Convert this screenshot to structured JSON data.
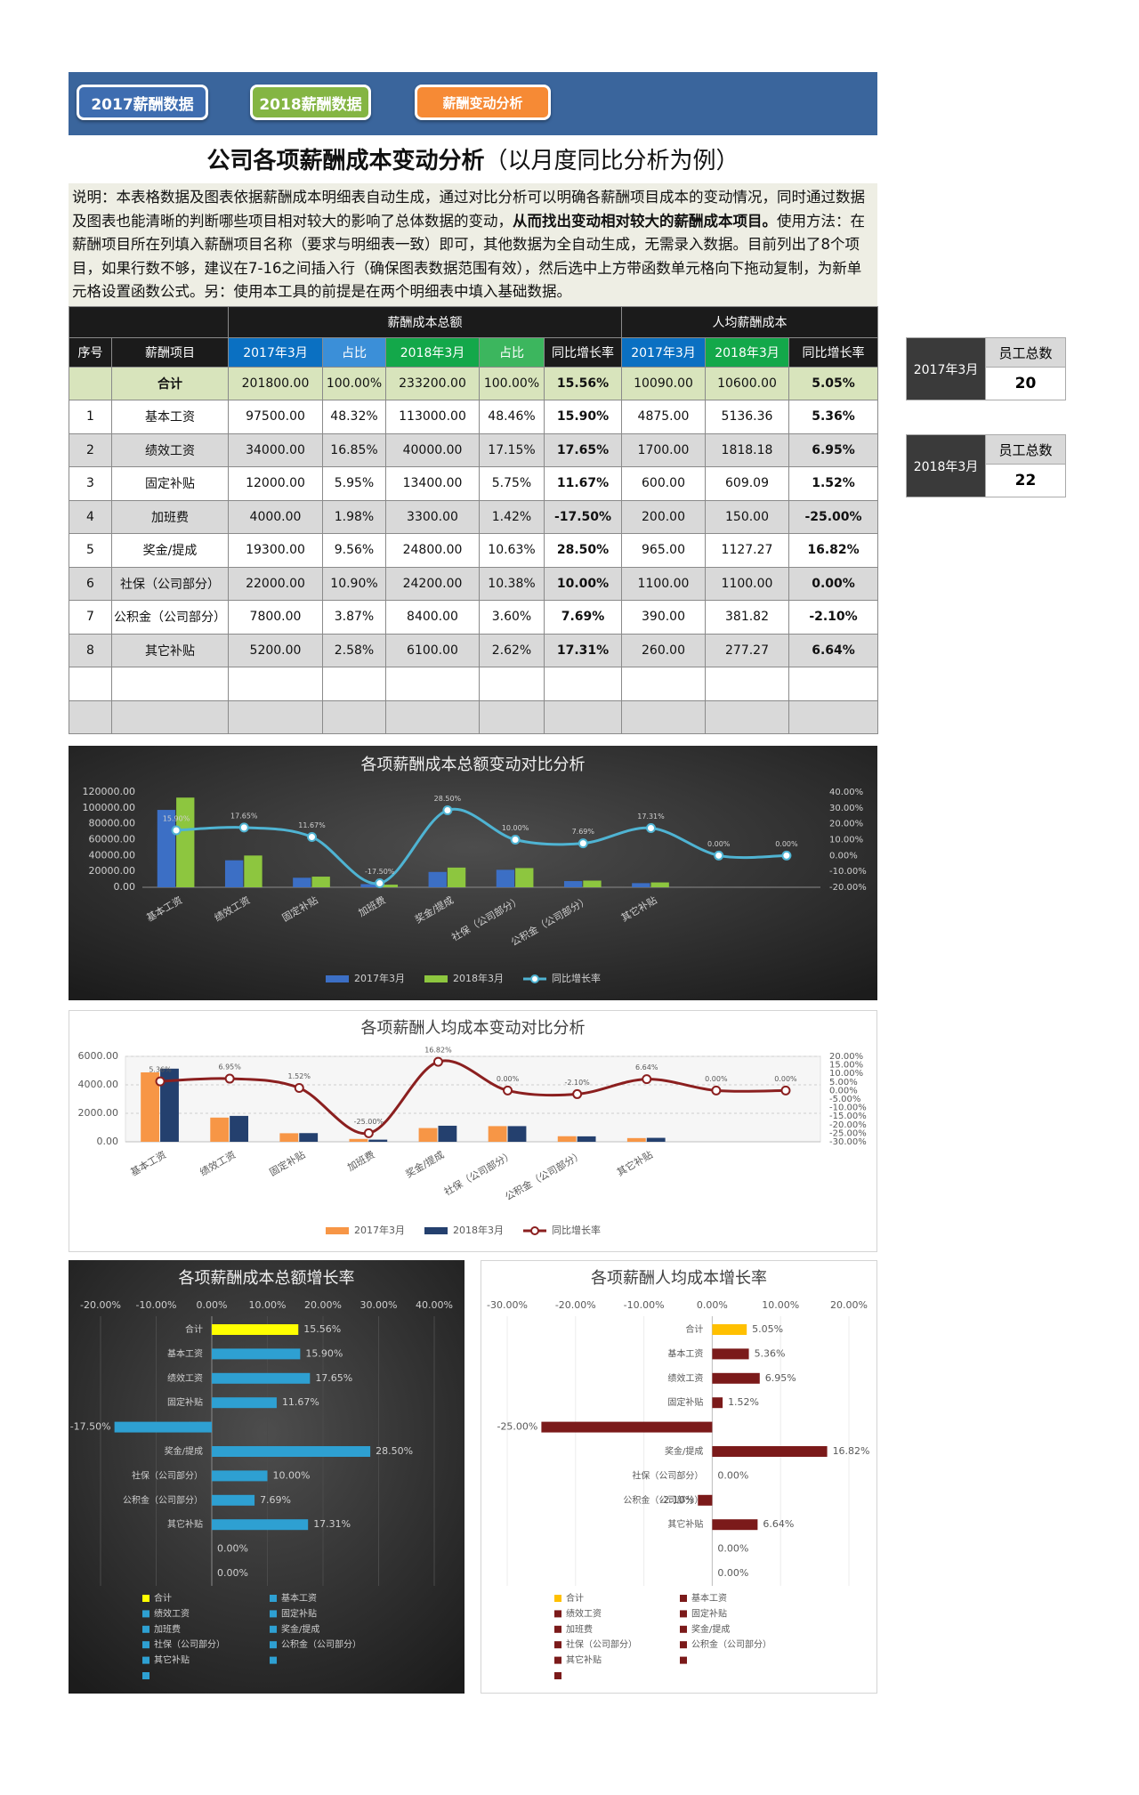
{
  "tabs": [
    "2017薪酬数据",
    "2018薪酬数据",
    "薪酬变动分析"
  ],
  "title": {
    "main": "公司各项薪酬成本变动分析",
    "sub": "（以月度同比分析为例）"
  },
  "description": {
    "text1": "说明：本表格数据及图表依据薪酬成本明细表自动生成，通过对比分析可以明确各薪酬项目成本的变动情况，同时通过数据及图表也能清晰的判断哪些项目相对较大的影响了总体数据的变动，",
    "bold": "从而找出变动相对较大的薪酬成本项目。",
    "text2": "使用方法：在薪酬项目所在列填入薪酬项目名称（要求与明细表一致）即可，其他数据为全自动生成，无需录入数据。目前列出了8个项目，如果行数不够，建议在7-16之间插入行（确保图表数据范围有效），然后选中上方带函数单元格向下拖动复制，为新单元格设置函数公式。另：使用本工具的前提是在两个明细表中填入基础数据。"
  },
  "table": {
    "group_headers": [
      "薪酬成本总额",
      "人均薪酬成本"
    ],
    "headers": [
      "序号",
      "薪酬项目",
      "2017年3月",
      "占比",
      "2018年3月",
      "占比",
      "同比增长率",
      "2017年3月",
      "2018年3月",
      "同比增长率"
    ],
    "total": {
      "label": "合计",
      "values": [
        "201800.00",
        "100.00%",
        "233200.00",
        "100.00%",
        "15.56%",
        "10090.00",
        "10600.00",
        "5.05%"
      ]
    },
    "rows": [
      [
        "1",
        "基本工资",
        "97500.00",
        "48.32%",
        "113000.00",
        "48.46%",
        "15.90%",
        "4875.00",
        "5136.36",
        "5.36%"
      ],
      [
        "2",
        "绩效工资",
        "34000.00",
        "16.85%",
        "40000.00",
        "17.15%",
        "17.65%",
        "1700.00",
        "1818.18",
        "6.95%"
      ],
      [
        "3",
        "固定补贴",
        "12000.00",
        "5.95%",
        "13400.00",
        "5.75%",
        "11.67%",
        "600.00",
        "609.09",
        "1.52%"
      ],
      [
        "4",
        "加班费",
        "4000.00",
        "1.98%",
        "3300.00",
        "1.42%",
        "-17.50%",
        "200.00",
        "150.00",
        "-25.00%"
      ],
      [
        "5",
        "奖金/提成",
        "19300.00",
        "9.56%",
        "24800.00",
        "10.63%",
        "28.50%",
        "965.00",
        "1127.27",
        "16.82%"
      ],
      [
        "6",
        "社保（公司部分）",
        "22000.00",
        "10.90%",
        "24200.00",
        "10.38%",
        "10.00%",
        "1100.00",
        "1100.00",
        "0.00%"
      ],
      [
        "7",
        "公积金（公司部分）",
        "7800.00",
        "3.87%",
        "8400.00",
        "3.60%",
        "7.69%",
        "390.00",
        "381.82",
        "-2.10%"
      ],
      [
        "8",
        "其它补贴",
        "5200.00",
        "2.58%",
        "6100.00",
        "2.62%",
        "17.31%",
        "260.00",
        "277.27",
        "6.64%"
      ]
    ]
  },
  "side_boxes": [
    {
      "label": "2017年3月",
      "header": "员工总数",
      "value": 20
    },
    {
      "label": "2018年3月",
      "header": "员工总数",
      "value": 22
    }
  ],
  "chart_data": [
    {
      "type": "combo",
      "theme": "dark",
      "grid": false,
      "legend": "bottom",
      "title": "各项薪酬成本总额变动对比分析",
      "categories": [
        "基本工资",
        "绩效工资",
        "固定补贴",
        "加班费",
        "奖金/提成",
        "社保（公司部分）",
        "公积金（公司部分）",
        "其它补贴",
        null,
        null
      ],
      "series": [
        {
          "name": "2017年3月",
          "color": "#3c6fc5",
          "values": [
            97500,
            34000,
            12000,
            4000,
            19300,
            22000,
            7800,
            5200,
            0,
            0
          ]
        },
        {
          "name": "2018年3月",
          "color": "#8dc63f",
          "values": [
            113000,
            40000,
            13400,
            3300,
            24800,
            24200,
            8400,
            6100,
            0,
            0
          ]
        },
        {
          "name": "同比增长率",
          "color": "#4fb4d3",
          "type": "line",
          "axis": "y2",
          "values": [
            15.9,
            17.65,
            11.67,
            -17.5,
            28.5,
            10,
            7.69,
            17.31,
            0,
            0
          ],
          "value_labels": [
            "15.90%",
            "17.65%",
            "11.67%",
            "-17.50%",
            "28.50%",
            "10.00%",
            "7.69%",
            "17.31%",
            "0.00%",
            "0.00%"
          ]
        }
      ],
      "ylim": [
        0,
        120000
      ],
      "yticks": [
        {
          "value": 0,
          "label": "0.00"
        },
        {
          "value": 20000,
          "label": "20000.00"
        },
        {
          "value": 40000,
          "label": "40000.00"
        },
        {
          "value": 60000,
          "label": "60000.00"
        },
        {
          "value": 80000,
          "label": "80000.00"
        },
        {
          "value": 100000,
          "label": "100000.00"
        },
        {
          "value": 120000,
          "label": "120000.00"
        }
      ],
      "y2lim": [
        -20,
        40
      ],
      "y2ticks": [
        {
          "value": -20,
          "label": "-20.00%"
        },
        {
          "value": -10,
          "label": "-10.00%"
        },
        {
          "value": 0,
          "label": "0.00%"
        },
        {
          "value": 10,
          "label": "10.00%"
        },
        {
          "value": 20,
          "label": "20.00%"
        },
        {
          "value": 30,
          "label": "30.00%"
        },
        {
          "value": 40,
          "label": "40.00%"
        }
      ]
    },
    {
      "type": "combo",
      "theme": "light",
      "grid": true,
      "legend": "bottom",
      "title": "各项薪酬人均成本变动对比分析",
      "categories": [
        "基本工资",
        "绩效工资",
        "固定补贴",
        "加班费",
        "奖金/提成",
        "社保（公司部分）",
        "公积金（公司部分）",
        "其它补贴",
        null,
        null
      ],
      "series": [
        {
          "name": "2017年3月",
          "color": "#f79646",
          "values": [
            4875,
            1700,
            600,
            200,
            965,
            1100,
            390,
            260,
            0,
            0
          ]
        },
        {
          "name": "2018年3月",
          "color": "#24406e",
          "values": [
            5136.36,
            1818.18,
            609.09,
            150,
            1127.27,
            1100,
            381.82,
            277.27,
            0,
            0
          ]
        },
        {
          "name": "同比增长率",
          "color": "#8b1f1f",
          "type": "line",
          "axis": "y2",
          "values": [
            5.36,
            6.95,
            1.52,
            -25,
            16.82,
            0,
            -2.1,
            6.64,
            0,
            0
          ],
          "value_labels": [
            "5.36%",
            "6.95%",
            "1.52%",
            "-25.00%",
            "16.82%",
            "0.00%",
            "-2.10%",
            "6.64%",
            "0.00%",
            "0.00%"
          ]
        }
      ],
      "ylim": [
        0,
        6000
      ],
      "yticks": [
        {
          "value": 0,
          "label": "0.00"
        },
        {
          "value": 2000,
          "label": "2000.00"
        },
        {
          "value": 4000,
          "label": "4000.00"
        },
        {
          "value": 6000,
          "label": "6000.00"
        }
      ],
      "y2lim": [
        -30,
        20
      ],
      "y2ticks": [
        {
          "value": -30,
          "label": "-30.00%"
        },
        {
          "value": -25,
          "label": "-25.00%"
        },
        {
          "value": -20,
          "label": "-20.00%"
        },
        {
          "value": -15,
          "label": "-15.00%"
        },
        {
          "value": -10,
          "label": "-10.00%"
        },
        {
          "value": -5,
          "label": "-5.00%"
        },
        {
          "value": 0,
          "label": "0.00%"
        },
        {
          "value": 5,
          "label": "5.00%"
        },
        {
          "value": 10,
          "label": "10.00%"
        },
        {
          "value": 15,
          "label": "15.00%"
        },
        {
          "value": 20,
          "label": "20.00%"
        }
      ]
    },
    {
      "type": "hbar",
      "theme": "dark",
      "grid": true,
      "legend": "bottom",
      "title": "各项薪酬成本总额增长率",
      "categories": [
        "合计",
        "基本工资",
        "绩效工资",
        "固定补贴",
        "加班费",
        "奖金/提成",
        "社保（公司部分）",
        "公积金（公司部分）",
        "其它补贴",
        null,
        null
      ],
      "values": [
        15.56,
        15.9,
        17.65,
        11.67,
        -17.5,
        28.5,
        10,
        7.69,
        17.31,
        0,
        0
      ],
      "value_labels": [
        "15.56%",
        "15.90%",
        "17.65%",
        "11.67%",
        "-17.50%",
        "28.50%",
        "10.00%",
        "7.69%",
        "17.31%",
        "0.00%",
        "0.00%"
      ],
      "colors": [
        "#ffff00",
        "#2ea0d2",
        "#2ea0d2",
        "#2ea0d2",
        "#2ea0d2",
        "#2ea0d2",
        "#2ea0d2",
        "#2ea0d2",
        "#2ea0d2",
        "#2ea0d2",
        "#2ea0d2"
      ],
      "xlim": [
        -20,
        40
      ],
      "xticks": [
        {
          "value": -20,
          "label": "-20.00%"
        },
        {
          "value": -10,
          "label": "-10.00%"
        },
        {
          "value": 0,
          "label": "0.00%"
        },
        {
          "value": 10,
          "label": "10.00%"
        },
        {
          "value": 20,
          "label": "20.00%"
        },
        {
          "value": 30,
          "label": "30.00%"
        },
        {
          "value": 40,
          "label": "40.00%"
        }
      ]
    },
    {
      "type": "hbar",
      "theme": "light",
      "grid": true,
      "legend": "bottom",
      "title": "各项薪酬人均成本增长率",
      "categories": [
        "合计",
        "基本工资",
        "绩效工资",
        "固定补贴",
        "加班费",
        "奖金/提成",
        "社保（公司部分）",
        "公积金（公司部分）",
        "其它补贴",
        null,
        null
      ],
      "values": [
        5.05,
        5.36,
        6.95,
        1.52,
        -25,
        16.82,
        0,
        -2.1,
        6.64,
        0,
        0
      ],
      "value_labels": [
        "5.05%",
        "5.36%",
        "6.95%",
        "1.52%",
        "-25.00%",
        "16.82%",
        "0.00%",
        "-2.10%",
        "6.64%",
        "0.00%",
        "0.00%"
      ],
      "colors": [
        "#ffc000",
        "#7b1a1a",
        "#7b1a1a",
        "#7b1a1a",
        "#7b1a1a",
        "#7b1a1a",
        "#7b1a1a",
        "#7b1a1a",
        "#7b1a1a",
        "#7b1a1a",
        "#7b1a1a"
      ],
      "xlim": [
        -30,
        20
      ],
      "xticks": [
        {
          "value": -30,
          "label": "-30.00%"
        },
        {
          "value": -20,
          "label": "-20.00%"
        },
        {
          "value": -10,
          "label": "-10.00%"
        },
        {
          "value": 0,
          "label": "0.00%"
        },
        {
          "value": 10,
          "label": "10.00%"
        },
        {
          "value": 20,
          "label": "20.00%"
        }
      ]
    }
  ]
}
